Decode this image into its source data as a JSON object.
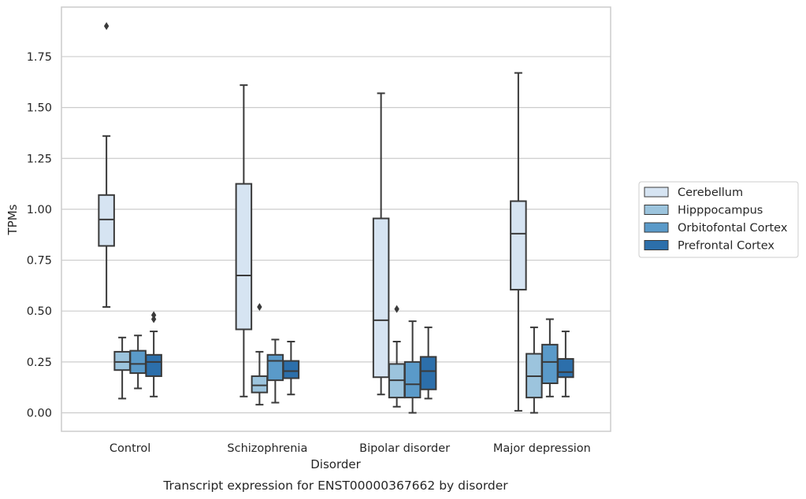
{
  "chart_data": {
    "type": "box",
    "caption": "Transcript expression for ENST00000367662 by disorder",
    "xlabel": "Disorder",
    "ylabel": "TPMs",
    "ylim": [
      -0.09,
      1.99
    ],
    "yticks": [
      0.0,
      0.25,
      0.5,
      0.75,
      1.0,
      1.25,
      1.5,
      1.75
    ],
    "ytick_labels": [
      "0.00",
      "0.25",
      "0.50",
      "0.75",
      "1.00",
      "1.25",
      "1.50",
      "1.75"
    ],
    "grid": "horizontal",
    "legend_position": "right",
    "categories": [
      "Control",
      "Schizophrenia",
      "Bipolar disorder",
      "Major depression"
    ],
    "series": [
      {
        "name": "Cerebellum",
        "color": "#d6e4f2",
        "boxes": [
          {
            "whislo": 0.52,
            "q1": 0.82,
            "med": 0.95,
            "q3": 1.07,
            "whishi": 1.36,
            "fliers": [
              1.9
            ]
          },
          {
            "whislo": 0.08,
            "q1": 0.41,
            "med": 0.675,
            "q3": 1.125,
            "whishi": 1.61,
            "fliers": []
          },
          {
            "whislo": 0.09,
            "q1": 0.175,
            "med": 0.455,
            "q3": 0.955,
            "whishi": 1.57,
            "fliers": []
          },
          {
            "whislo": 0.01,
            "q1": 0.605,
            "med": 0.88,
            "q3": 1.04,
            "whishi": 1.67,
            "fliers": []
          }
        ]
      },
      {
        "name": "Hipppocampus",
        "color": "#9cc4dd",
        "boxes": [
          {
            "whislo": 0.07,
            "q1": 0.21,
            "med": 0.25,
            "q3": 0.3,
            "whishi": 0.37,
            "fliers": []
          },
          {
            "whislo": 0.04,
            "q1": 0.1,
            "med": 0.135,
            "q3": 0.18,
            "whishi": 0.3,
            "fliers": [
              0.52
            ]
          },
          {
            "whislo": 0.03,
            "q1": 0.075,
            "med": 0.16,
            "q3": 0.24,
            "whishi": 0.35,
            "fliers": [
              0.51
            ]
          },
          {
            "whislo": 0.0,
            "q1": 0.075,
            "med": 0.18,
            "q3": 0.29,
            "whishi": 0.42,
            "fliers": []
          }
        ]
      },
      {
        "name": "Orbitofontal Cortex",
        "color": "#5a9ac9",
        "boxes": [
          {
            "whislo": 0.12,
            "q1": 0.195,
            "med": 0.24,
            "q3": 0.305,
            "whishi": 0.38,
            "fliers": []
          },
          {
            "whislo": 0.05,
            "q1": 0.16,
            "med": 0.255,
            "q3": 0.285,
            "whishi": 0.36,
            "fliers": []
          },
          {
            "whislo": 0.0,
            "q1": 0.075,
            "med": 0.14,
            "q3": 0.25,
            "whishi": 0.45,
            "fliers": []
          },
          {
            "whislo": 0.08,
            "q1": 0.145,
            "med": 0.25,
            "q3": 0.335,
            "whishi": 0.46,
            "fliers": []
          }
        ]
      },
      {
        "name": "Prefrontal Cortex",
        "color": "#2c6fab",
        "boxes": [
          {
            "whislo": 0.08,
            "q1": 0.18,
            "med": 0.25,
            "q3": 0.285,
            "whishi": 0.4,
            "fliers": [
              0.46,
              0.48
            ]
          },
          {
            "whislo": 0.09,
            "q1": 0.17,
            "med": 0.205,
            "q3": 0.255,
            "whishi": 0.35,
            "fliers": []
          },
          {
            "whislo": 0.07,
            "q1": 0.115,
            "med": 0.205,
            "q3": 0.275,
            "whishi": 0.42,
            "fliers": []
          },
          {
            "whislo": 0.08,
            "q1": 0.175,
            "med": 0.2,
            "q3": 0.265,
            "whishi": 0.4,
            "fliers": []
          }
        ]
      }
    ]
  }
}
